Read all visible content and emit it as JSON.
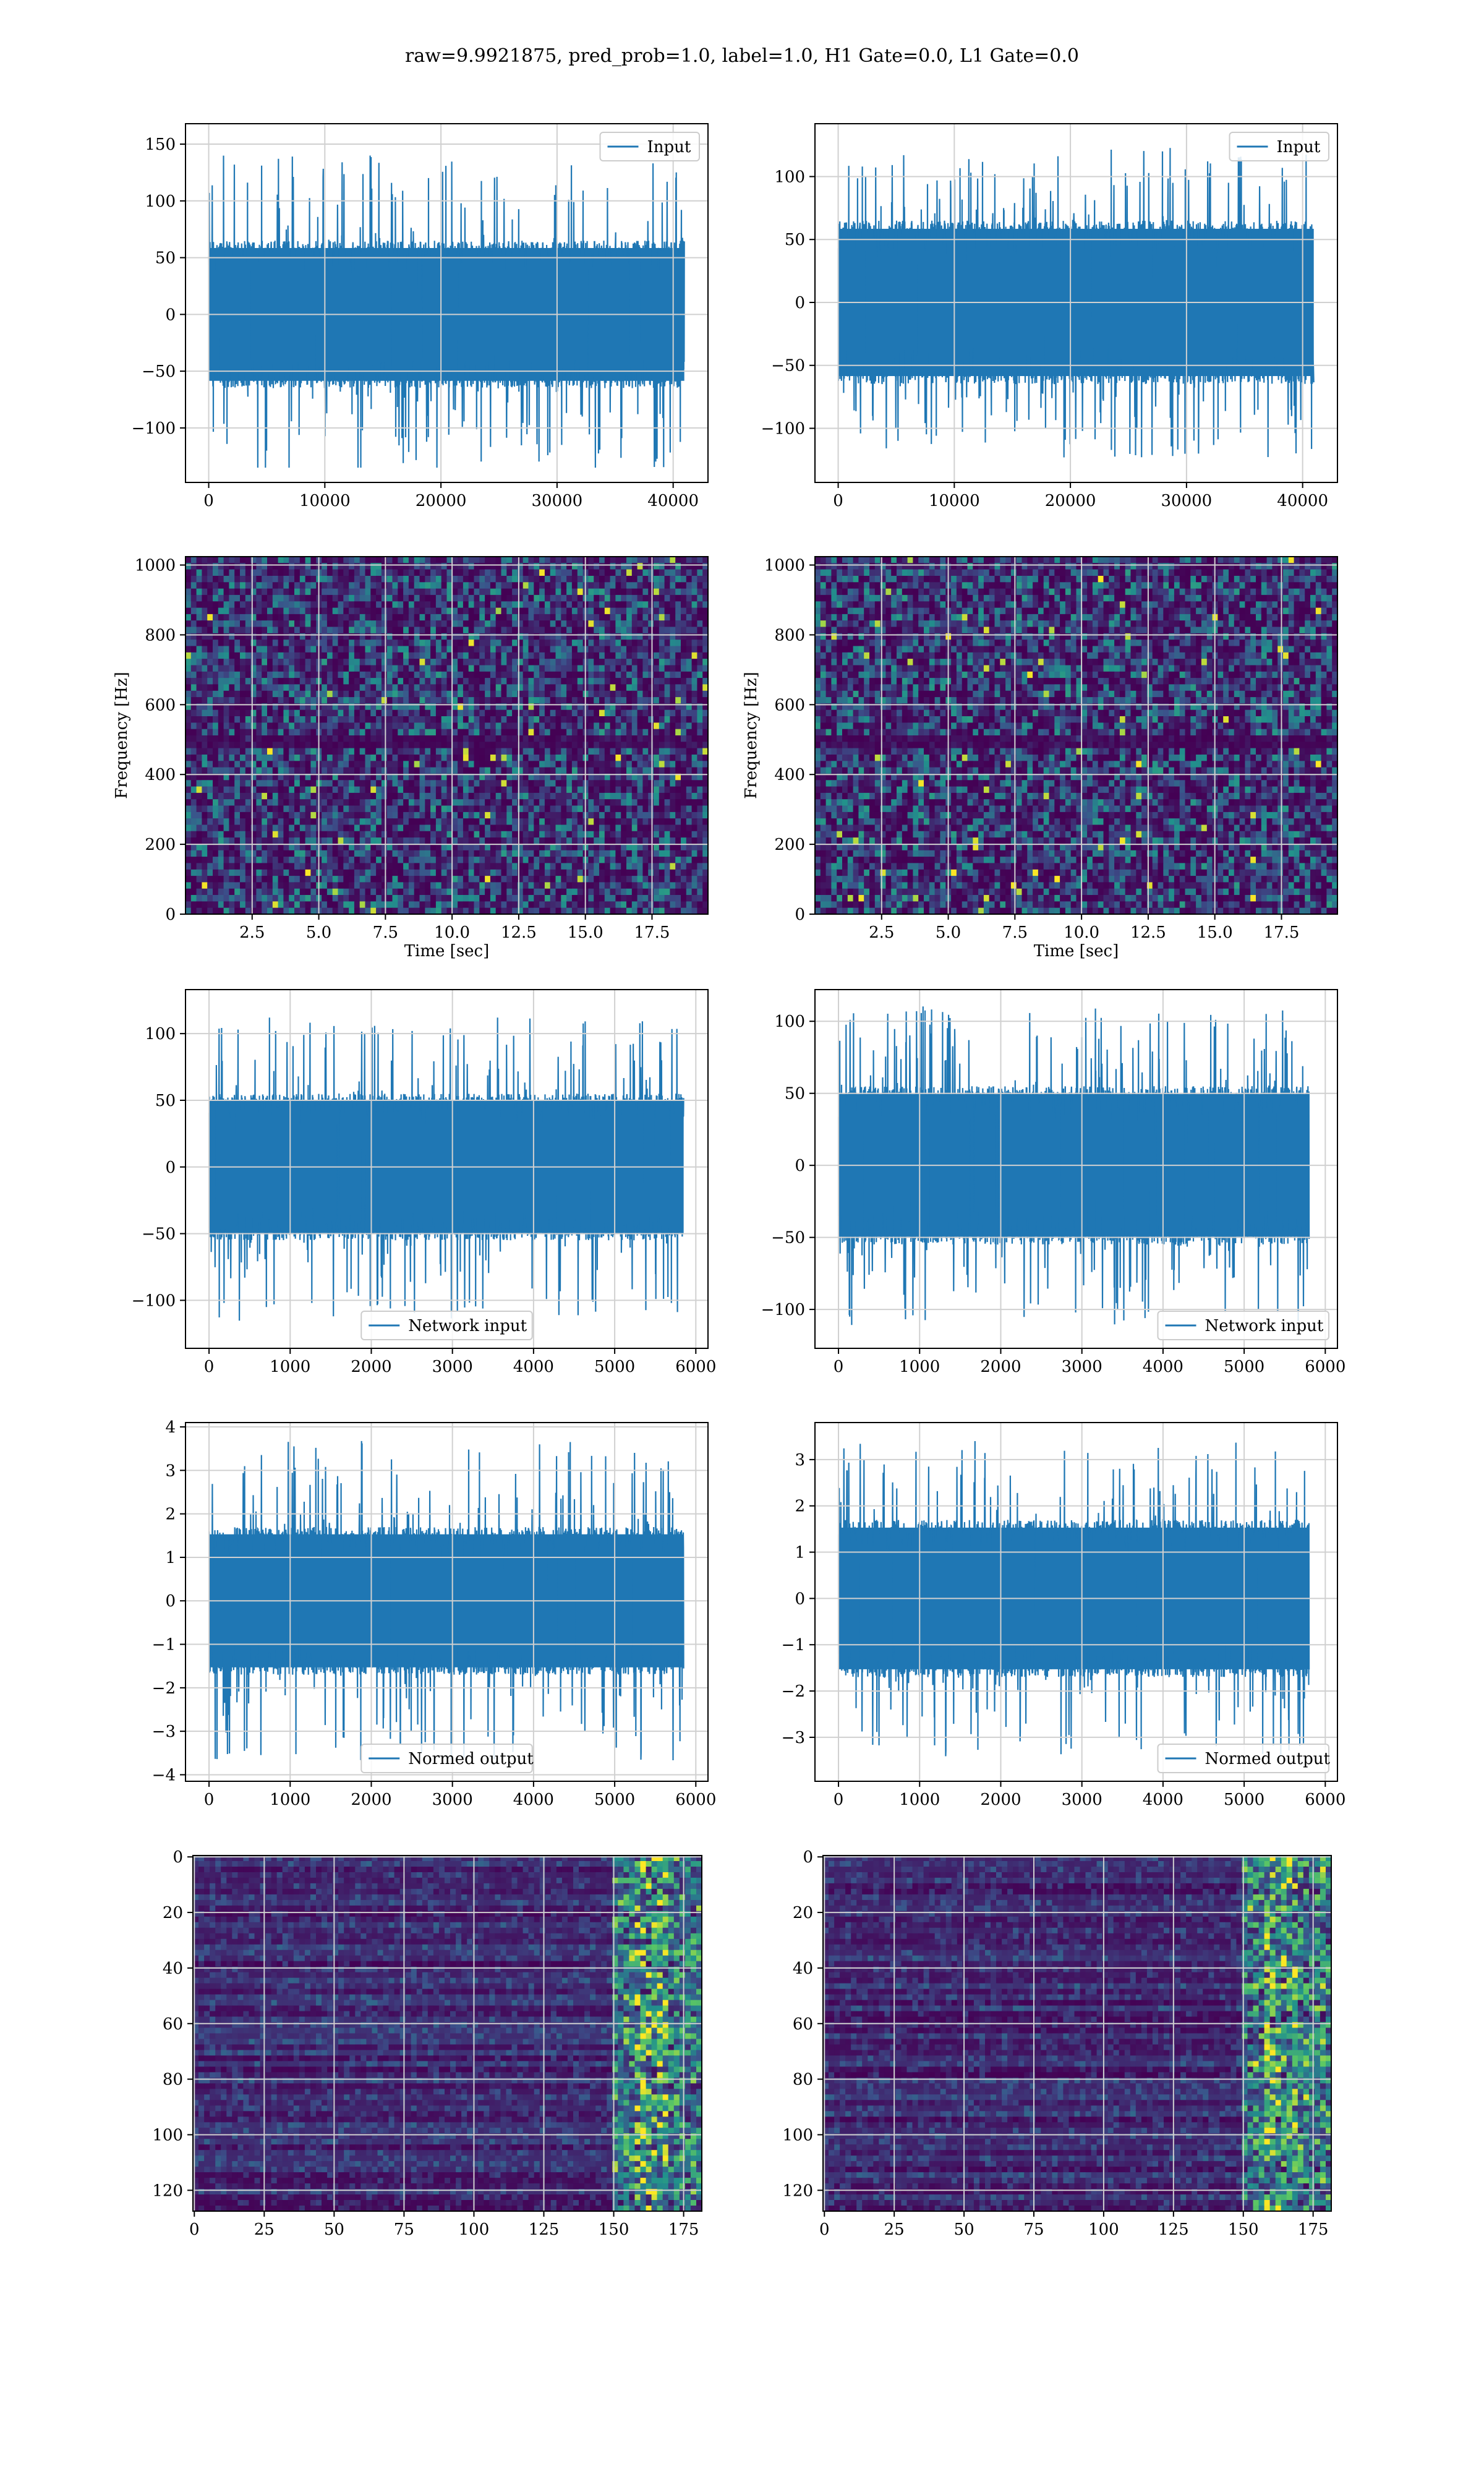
{
  "figure": {
    "suptitle": "raw=9.9921875, pred_prob=1.0, label=1.0, H1 Gate=0.0, L1 Gate=0.0"
  },
  "colors": {
    "line": "#1f77b4",
    "grid": "#d0d0d0",
    "viridis_low": "#440154",
    "viridis_mid": "#21918c",
    "viridis_high": "#fde725"
  },
  "chart_data": [
    {
      "id": "input-left",
      "type": "line",
      "row": 0,
      "col": 0,
      "series": [
        {
          "name": "Input",
          "values": []
        }
      ],
      "x_range": [
        0,
        40960
      ],
      "envelope": {
        "core": 65,
        "peak": 150,
        "trough": -135
      },
      "xlim": [
        -2000,
        43000
      ],
      "ylim": [
        -148,
        168
      ],
      "xticks": [
        0,
        10000,
        20000,
        30000,
        40000
      ],
      "yticks": [
        -100,
        -50,
        0,
        50,
        100,
        150
      ],
      "xlabel": "",
      "ylabel": "",
      "legend": "upper right",
      "grid": true
    },
    {
      "id": "input-right",
      "type": "line",
      "row": 0,
      "col": 1,
      "series": [
        {
          "name": "Input",
          "values": []
        }
      ],
      "x_range": [
        0,
        40960
      ],
      "envelope": {
        "core": 65,
        "peak": 125,
        "trough": -130
      },
      "xlim": [
        -2000,
        43000
      ],
      "ylim": [
        -143,
        142
      ],
      "xticks": [
        0,
        10000,
        20000,
        30000,
        40000
      ],
      "yticks": [
        -100,
        -50,
        0,
        50,
        100
      ],
      "xlabel": "",
      "ylabel": "",
      "legend": "upper right",
      "grid": true
    },
    {
      "id": "spectrogram-left",
      "type": "heatmap",
      "row": 1,
      "col": 0,
      "xlim": [
        0,
        19.6
      ],
      "ylim": [
        0,
        1024
      ],
      "xticks": [
        2.5,
        5.0,
        7.5,
        10.0,
        12.5,
        15.0,
        17.5
      ],
      "xtick_labels": [
        "2.5",
        "5.0",
        "7.5",
        "10.0",
        "12.5",
        "15.0",
        "17.5"
      ],
      "yticks": [
        0,
        200,
        400,
        600,
        800,
        1000
      ],
      "xlabel": "Time [sec]",
      "ylabel": "Frequency [Hz]",
      "grid": true,
      "colormap": "viridis"
    },
    {
      "id": "spectrogram-right",
      "type": "heatmap",
      "row": 1,
      "col": 1,
      "xlim": [
        0,
        19.6
      ],
      "ylim": [
        0,
        1024
      ],
      "xticks": [
        2.5,
        5.0,
        7.5,
        10.0,
        12.5,
        15.0,
        17.5
      ],
      "xtick_labels": [
        "2.5",
        "5.0",
        "7.5",
        "10.0",
        "12.5",
        "15.0",
        "17.5"
      ],
      "yticks": [
        0,
        200,
        400,
        600,
        800,
        1000
      ],
      "xlabel": "Time [sec]",
      "ylabel": "Frequency [Hz]",
      "grid": true,
      "colormap": "viridis"
    },
    {
      "id": "network-input-left",
      "type": "line",
      "row": 2,
      "col": 0,
      "series": [
        {
          "name": "Network input",
          "values": []
        }
      ],
      "x_range": [
        0,
        5850
      ],
      "envelope": {
        "core": 55,
        "peak": 112,
        "trough": -122
      },
      "xlim": [
        -290,
        6150
      ],
      "ylim": [
        -136,
        133
      ],
      "xticks": [
        0,
        1000,
        2000,
        3000,
        4000,
        5000,
        6000
      ],
      "yticks": [
        -100,
        -50,
        0,
        50,
        100
      ],
      "xlabel": "",
      "ylabel": "",
      "legend": "lower center",
      "grid": true
    },
    {
      "id": "network-input-right",
      "type": "line",
      "row": 2,
      "col": 1,
      "series": [
        {
          "name": "Network input",
          "values": []
        }
      ],
      "x_range": [
        0,
        5800
      ],
      "envelope": {
        "core": 55,
        "peak": 112,
        "trough": -117
      },
      "xlim": [
        -290,
        6150
      ],
      "ylim": [
        -127,
        122
      ],
      "xticks": [
        0,
        1000,
        2000,
        3000,
        4000,
        5000,
        6000
      ],
      "yticks": [
        -100,
        -50,
        0,
        50,
        100
      ],
      "xlabel": "",
      "ylabel": "",
      "legend": "lower right",
      "grid": true
    },
    {
      "id": "normed-output-left",
      "type": "line",
      "row": 3,
      "col": 0,
      "series": [
        {
          "name": "Normed output",
          "values": []
        }
      ],
      "x_range": [
        0,
        5850
      ],
      "envelope": {
        "core": 1.7,
        "peak": 3.7,
        "trough": -3.9
      },
      "xlim": [
        -290,
        6150
      ],
      "ylim": [
        -4.15,
        4.1
      ],
      "xticks": [
        0,
        1000,
        2000,
        3000,
        4000,
        5000,
        6000
      ],
      "yticks": [
        -4,
        -3,
        -2,
        -1,
        0,
        1,
        2,
        3,
        4
      ],
      "xlabel": "",
      "ylabel": "",
      "legend": "lower center",
      "grid": true
    },
    {
      "id": "normed-output-right",
      "type": "line",
      "row": 3,
      "col": 1,
      "series": [
        {
          "name": "Normed output",
          "values": []
        }
      ],
      "x_range": [
        0,
        5800
      ],
      "envelope": {
        "core": 1.7,
        "peak": 3.5,
        "trough": -3.6
      },
      "xlim": [
        -290,
        6150
      ],
      "ylim": [
        -3.95,
        3.8
      ],
      "xticks": [
        0,
        1000,
        2000,
        3000,
        4000,
        5000,
        6000
      ],
      "yticks": [
        -3,
        -2,
        -1,
        0,
        1,
        2,
        3
      ],
      "xlabel": "",
      "ylabel": "",
      "legend": "lower right",
      "grid": true
    },
    {
      "id": "feature-map-left",
      "type": "heatmap",
      "row": 4,
      "col": 0,
      "xlim": [
        -0.5,
        181.5
      ],
      "ylim": [
        127.5,
        -0.5
      ],
      "xticks": [
        0,
        25,
        50,
        75,
        100,
        125,
        150,
        175
      ],
      "yticks": [
        0,
        20,
        40,
        60,
        80,
        100,
        120
      ],
      "xlabel": "",
      "ylabel": "",
      "grid": true,
      "colormap": "viridis"
    },
    {
      "id": "feature-map-right",
      "type": "heatmap",
      "row": 4,
      "col": 1,
      "xlim": [
        -0.5,
        181.5
      ],
      "ylim": [
        127.5,
        -0.5
      ],
      "xticks": [
        0,
        25,
        50,
        75,
        100,
        125,
        150,
        175
      ],
      "yticks": [
        0,
        20,
        40,
        60,
        80,
        100,
        120
      ],
      "xlabel": "",
      "ylabel": "",
      "grid": true,
      "colormap": "viridis"
    }
  ]
}
